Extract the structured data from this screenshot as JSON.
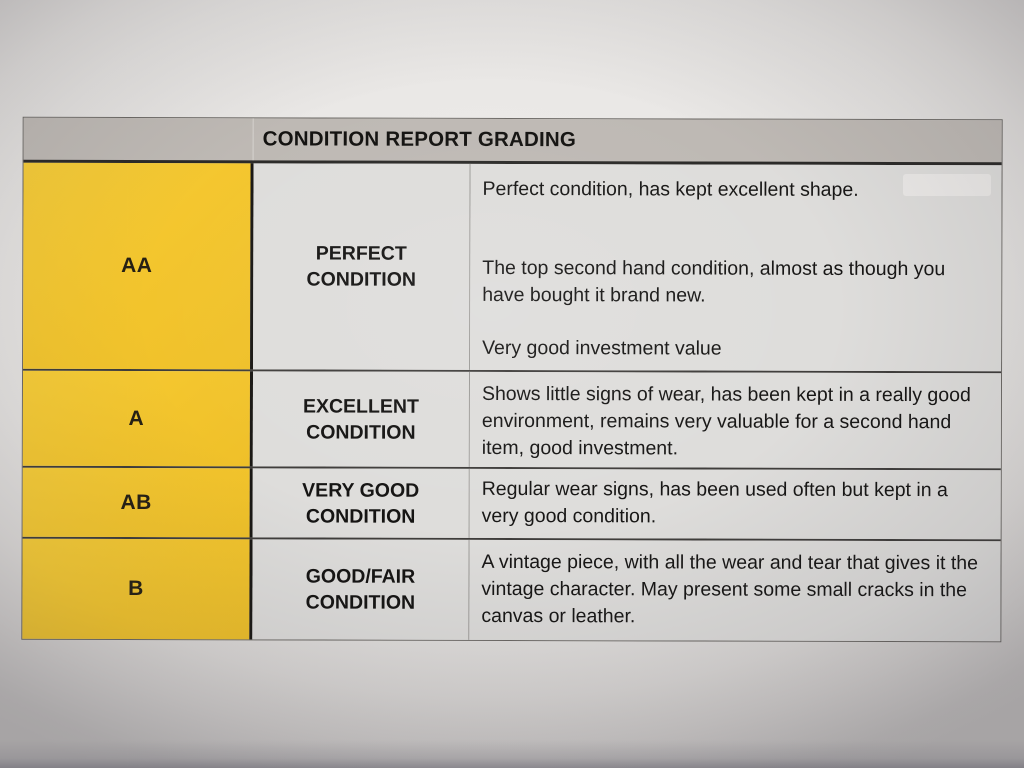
{
  "table": {
    "title": "CONDITION REPORT GRADING",
    "rows": [
      {
        "grade": "AA",
        "condition": "PERFECT CONDITION",
        "description": [
          "Perfect condition, has kept excellent shape.",
          "The top second hand condition, almost as though you have bought it brand new.",
          "Very good investment value"
        ]
      },
      {
        "grade": "A",
        "condition": "EXCELLENT CONDITION",
        "description": [
          "Shows little signs of wear, has been kept in a really good environment, remains very valuable for a second hand item, good investment."
        ]
      },
      {
        "grade": "AB",
        "condition": "VERY GOOD CONDITION",
        "description": [
          "Regular wear signs, has been used often but kept in a very good condition."
        ]
      },
      {
        "grade": "B",
        "condition": "GOOD/FAIR CONDITION",
        "description": [
          "A vintage piece, with all the wear and tear that gives it the vintage character. May present some small cracks in the canvas or leather."
        ]
      }
    ]
  },
  "colors": {
    "grade_cell_yellow": "#F3C52D",
    "header_gray": "#BEB9B4",
    "cell_gray": "#DEDDDB",
    "paper": "#E9E7E5",
    "text": "#1B1A19"
  }
}
